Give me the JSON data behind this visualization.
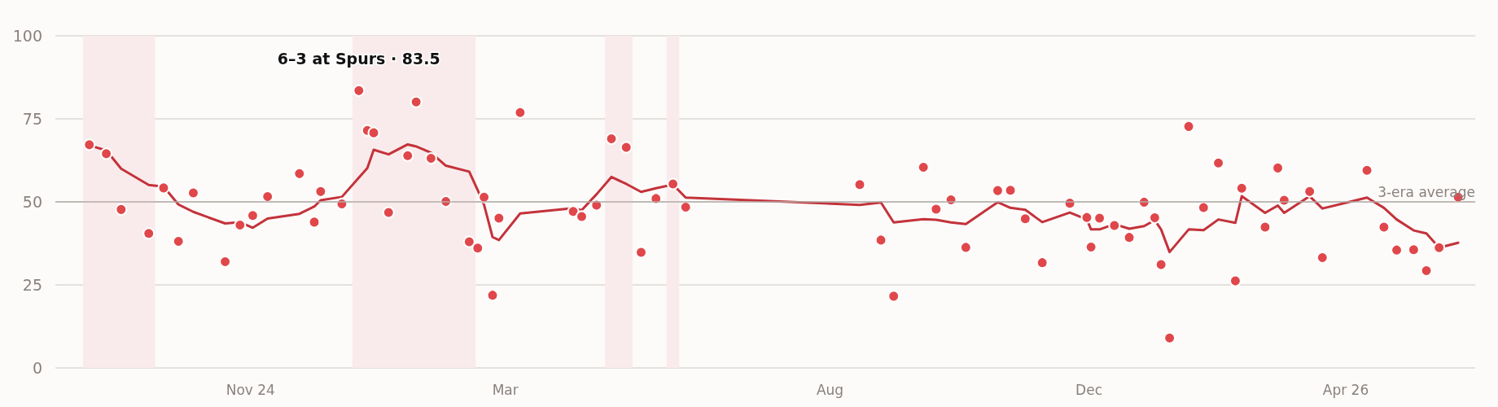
{
  "chart_data": {
    "type": "scatter",
    "x": [
      "2024-08-17",
      "2024-08-25",
      "2024-09-01",
      "2024-09-14",
      "2024-09-21",
      "2024-09-28",
      "2024-10-05",
      "2024-10-20",
      "2024-10-27",
      "2024-11-02",
      "2024-11-09",
      "2024-11-24",
      "2024-12-01",
      "2024-12-04",
      "2024-12-14",
      "2024-12-22",
      "2024-12-26",
      "2024-12-29",
      "2025-01-05",
      "2025-01-14",
      "2025-01-18",
      "2025-01-25",
      "2025-02-01",
      "2025-02-12",
      "2025-02-16",
      "2025-02-19",
      "2025-02-23",
      "2025-02-26",
      "2025-03-08",
      "2025-04-02",
      "2025-04-06",
      "2025-04-13",
      "2025-04-20",
      "2025-04-27",
      "2025-05-04",
      "2025-05-11",
      "2025-05-19",
      "2025-05-25",
      "2025-08-15",
      "2025-08-25",
      "2025-08-31",
      "2025-09-14",
      "2025-09-20",
      "2025-09-27",
      "2025-10-04",
      "2025-10-19",
      "2025-10-25",
      "2025-11-01",
      "2025-11-09",
      "2025-11-22",
      "2025-11-30",
      "2025-12-02",
      "2025-12-06",
      "2025-12-13",
      "2025-12-20",
      "2025-12-27",
      "2026-01-01",
      "2026-01-04",
      "2026-01-08",
      "2026-01-17",
      "2026-01-24",
      "2026-01-31",
      "2026-02-08",
      "2026-02-11",
      "2026-02-22",
      "2026-02-28",
      "2026-03-03",
      "2026-03-15",
      "2026-03-21",
      "2026-04-11",
      "2026-04-19",
      "2026-04-25",
      "2026-05-03",
      "2026-05-09",
      "2026-05-15",
      "2026-05-24"
    ],
    "series": [
      {
        "type": "line",
        "marker": "none",
        "color": "#c4323a",
        "values": [
          67.0,
          65.5,
          60.0,
          55.1,
          54.6,
          49.2,
          47.0,
          43.5,
          43.9,
          42.2,
          45.0,
          46.4,
          48.6,
          50.5,
          51.5,
          57.3,
          60.2,
          65.7,
          64.3,
          67.3,
          66.7,
          64.8,
          60.9,
          59.1,
          53.5,
          49.1,
          39.4,
          38.5,
          46.5,
          48.1,
          47.5,
          52.3,
          57.5,
          55.4,
          53.0,
          54.1,
          55.2,
          51.3,
          49.1,
          49.8,
          43.8,
          44.8,
          44.6,
          43.8,
          43.3,
          49.9,
          48.2,
          47.6,
          43.9,
          46.8,
          44.7,
          41.7,
          41.7,
          43.3,
          41.9,
          42.7,
          44.5,
          41.7,
          34.9,
          41.7,
          41.5,
          44.7,
          43.7,
          51.7,
          46.7,
          48.9,
          46.7,
          51.7,
          48.0,
          51.3,
          48.2,
          44.7,
          41.4,
          40.5,
          36.2,
          37.7
        ]
      },
      {
        "color": "#e0474a",
        "values": [
          67.2,
          64.5,
          47.7,
          40.5,
          54.2,
          38.1,
          52.7,
          32.0,
          43.0,
          45.9,
          51.6,
          58.5,
          43.9,
          53.1,
          49.4,
          83.5,
          71.5,
          70.8,
          46.8,
          63.9,
          80.1,
          63.1,
          50.1,
          38.0,
          36.1,
          51.4,
          21.9,
          45.1,
          76.9,
          47.1,
          45.6,
          49.0,
          69.0,
          66.4,
          34.8,
          51.0,
          55.4,
          48.4,
          55.2,
          38.5,
          21.6,
          60.4,
          47.8,
          50.6,
          36.3,
          53.4,
          53.5,
          44.9,
          31.7,
          49.6,
          45.3,
          36.4,
          45.1,
          42.9,
          39.3,
          49.9,
          45.2,
          31.1,
          9.0,
          72.7,
          48.3,
          61.7,
          26.2,
          54.1,
          42.4,
          60.2,
          50.5,
          53.1,
          33.2,
          59.5,
          42.4,
          35.5,
          35.6,
          29.3,
          36.2,
          51.4
        ]
      }
    ],
    "xlim": [
      "2024-08-01",
      "2026-06-01"
    ],
    "xticks": [
      {
        "value": "2024-11-01",
        "label": "Nov 24"
      },
      {
        "value": "2025-03-01",
        "label": "Mar"
      },
      {
        "value": "2025-08-01",
        "label": "Aug"
      },
      {
        "value": "2025-12-01",
        "label": "Dec"
      },
      {
        "value": "2026-04-01",
        "label": "Apr 26"
      }
    ],
    "ylim": [
      0,
      100
    ],
    "yticks": [
      0,
      25,
      50,
      75,
      100
    ],
    "grid": "y",
    "marker": "circle",
    "ref_lines": [
      {
        "axis": "y",
        "value": 50,
        "label": "3-era average",
        "color": "#b3aca8"
      }
    ],
    "bands": [
      {
        "axis": "x",
        "from": "2024-08-14",
        "to": "2024-09-17",
        "color": "#f9ebeb"
      },
      {
        "axis": "x",
        "from": "2024-12-19",
        "to": "2025-02-15",
        "color": "#f9ebeb"
      },
      {
        "axis": "x",
        "from": "2025-04-17",
        "to": "2025-04-30",
        "color": "#f9ebeb"
      },
      {
        "axis": "x",
        "from": "2025-05-16",
        "to": "2025-05-22",
        "color": "#f9ebeb"
      }
    ],
    "annotations": [
      {
        "text": "6–3 at Spurs · 83.5",
        "x": "2024-12-22",
        "y": 83.5
      }
    ]
  }
}
